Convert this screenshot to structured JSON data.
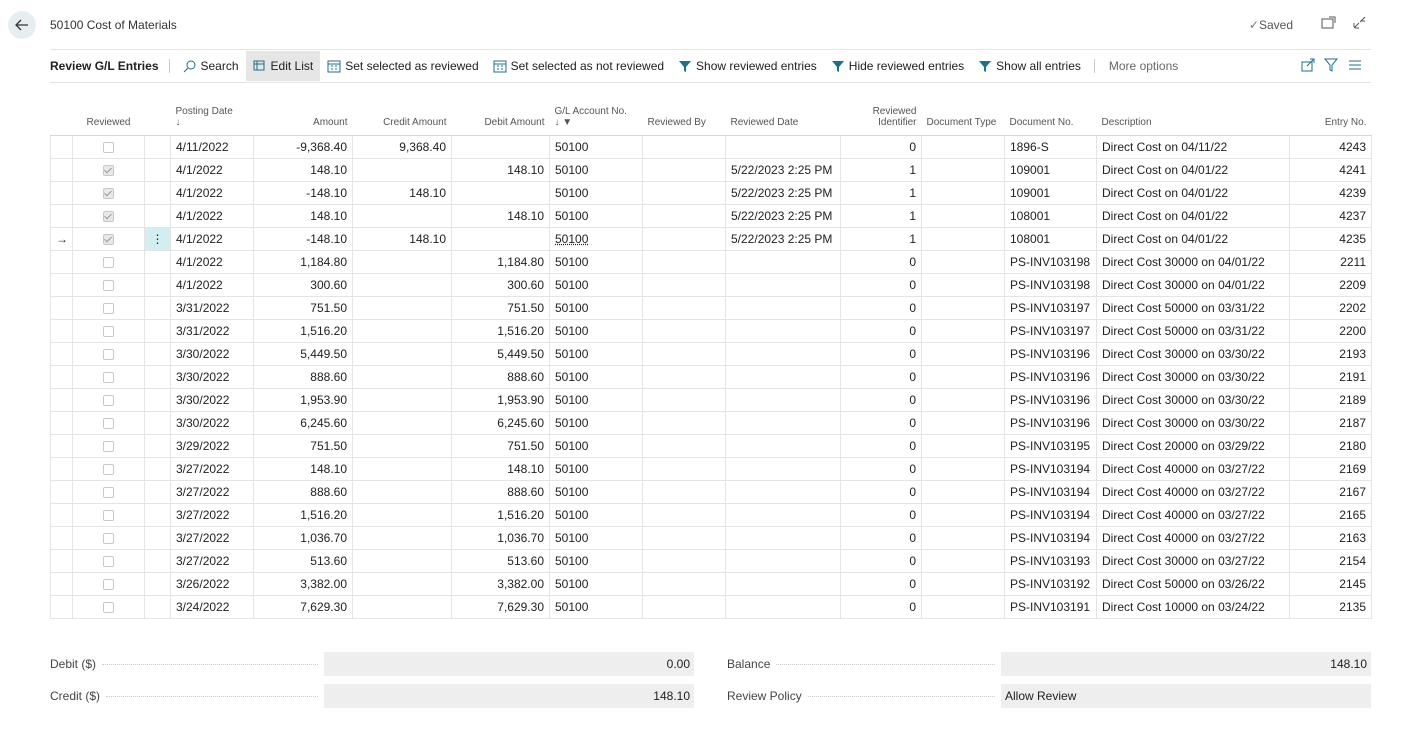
{
  "header": {
    "title": "50100 Cost of Materials",
    "status": "Saved"
  },
  "toolbar": {
    "title": "Review G/L Entries",
    "actions": [
      "Search",
      "Edit List",
      "Set selected as reviewed",
      "Set selected as not reviewed",
      "Show reviewed entries",
      "Hide reviewed entries",
      "Show all entries"
    ],
    "more": "More options"
  },
  "table": {
    "columns": [
      "Reviewed",
      "Posting Date",
      "Amount",
      "Credit Amount",
      "Debit Amount",
      "G/L Account No.",
      "Reviewed By",
      "Reviewed Date",
      "Reviewed Identifier",
      "Document Type",
      "Document No.",
      "Description",
      "Entry No."
    ],
    "selected_row": 4,
    "rows": [
      {
        "reviewed": false,
        "cells": [
          "4/11/2022",
          "-9,368.40",
          "9,368.40",
          null,
          "50100",
          null,
          null,
          "0",
          null,
          "1896-S",
          "Direct Cost  on 04/11/22",
          "4243"
        ]
      },
      {
        "reviewed": true,
        "cells": [
          "4/1/2022",
          "148.10",
          null,
          "148.10",
          "50100",
          null,
          "5/22/2023 2:25 PM",
          "1",
          null,
          "109001",
          "Direct Cost  on 04/01/22",
          "4241"
        ]
      },
      {
        "reviewed": true,
        "cells": [
          "4/1/2022",
          "-148.10",
          "148.10",
          null,
          "50100",
          null,
          "5/22/2023 2:25 PM",
          "1",
          null,
          "109001",
          "Direct Cost  on 04/01/22",
          "4239"
        ]
      },
      {
        "reviewed": true,
        "cells": [
          "4/1/2022",
          "148.10",
          null,
          "148.10",
          "50100",
          null,
          "5/22/2023 2:25 PM",
          "1",
          null,
          "108001",
          "Direct Cost  on 04/01/22",
          "4237"
        ]
      },
      {
        "reviewed": true,
        "cells": [
          "4/1/2022",
          "-148.10",
          "148.10",
          null,
          "50100",
          null,
          "5/22/2023 2:25 PM",
          "1",
          null,
          "108001",
          "Direct Cost  on 04/01/22",
          "4235"
        ]
      },
      {
        "reviewed": false,
        "cells": [
          "4/1/2022",
          "1,184.80",
          null,
          "1,184.80",
          "50100",
          null,
          null,
          "0",
          null,
          "PS-INV103198",
          "Direct Cost 30000 on 04/01/22",
          "2211"
        ]
      },
      {
        "reviewed": false,
        "cells": [
          "4/1/2022",
          "300.60",
          null,
          "300.60",
          "50100",
          null,
          null,
          "0",
          null,
          "PS-INV103198",
          "Direct Cost 30000 on 04/01/22",
          "2209"
        ]
      },
      {
        "reviewed": false,
        "cells": [
          "3/31/2022",
          "751.50",
          null,
          "751.50",
          "50100",
          null,
          null,
          "0",
          null,
          "PS-INV103197",
          "Direct Cost 50000 on 03/31/22",
          "2202"
        ]
      },
      {
        "reviewed": false,
        "cells": [
          "3/31/2022",
          "1,516.20",
          null,
          "1,516.20",
          "50100",
          null,
          null,
          "0",
          null,
          "PS-INV103197",
          "Direct Cost 50000 on 03/31/22",
          "2200"
        ]
      },
      {
        "reviewed": false,
        "cells": [
          "3/30/2022",
          "5,449.50",
          null,
          "5,449.50",
          "50100",
          null,
          null,
          "0",
          null,
          "PS-INV103196",
          "Direct Cost 30000 on 03/30/22",
          "2193"
        ]
      },
      {
        "reviewed": false,
        "cells": [
          "3/30/2022",
          "888.60",
          null,
          "888.60",
          "50100",
          null,
          null,
          "0",
          null,
          "PS-INV103196",
          "Direct Cost 30000 on 03/30/22",
          "2191"
        ]
      },
      {
        "reviewed": false,
        "cells": [
          "3/30/2022",
          "1,953.90",
          null,
          "1,953.90",
          "50100",
          null,
          null,
          "0",
          null,
          "PS-INV103196",
          "Direct Cost 30000 on 03/30/22",
          "2189"
        ]
      },
      {
        "reviewed": false,
        "cells": [
          "3/30/2022",
          "6,245.60",
          null,
          "6,245.60",
          "50100",
          null,
          null,
          "0",
          null,
          "PS-INV103196",
          "Direct Cost 30000 on 03/30/22",
          "2187"
        ]
      },
      {
        "reviewed": false,
        "cells": [
          "3/29/2022",
          "751.50",
          null,
          "751.50",
          "50100",
          null,
          null,
          "0",
          null,
          "PS-INV103195",
          "Direct Cost 20000 on 03/29/22",
          "2180"
        ]
      },
      {
        "reviewed": false,
        "cells": [
          "3/27/2022",
          "148.10",
          null,
          "148.10",
          "50100",
          null,
          null,
          "0",
          null,
          "PS-INV103194",
          "Direct Cost 40000 on 03/27/22",
          "2169"
        ]
      },
      {
        "reviewed": false,
        "cells": [
          "3/27/2022",
          "888.60",
          null,
          "888.60",
          "50100",
          null,
          null,
          "0",
          null,
          "PS-INV103194",
          "Direct Cost 40000 on 03/27/22",
          "2167"
        ]
      },
      {
        "reviewed": false,
        "cells": [
          "3/27/2022",
          "1,516.20",
          null,
          "1,516.20",
          "50100",
          null,
          null,
          "0",
          null,
          "PS-INV103194",
          "Direct Cost 40000 on 03/27/22",
          "2165"
        ]
      },
      {
        "reviewed": false,
        "cells": [
          "3/27/2022",
          "1,036.70",
          null,
          "1,036.70",
          "50100",
          null,
          null,
          "0",
          null,
          "PS-INV103194",
          "Direct Cost 40000 on 03/27/22",
          "2163"
        ]
      },
      {
        "reviewed": false,
        "cells": [
          "3/27/2022",
          "513.60",
          null,
          "513.60",
          "50100",
          null,
          null,
          "0",
          null,
          "PS-INV103193",
          "Direct Cost 30000 on 03/27/22",
          "2154"
        ]
      },
      {
        "reviewed": false,
        "cells": [
          "3/26/2022",
          "3,382.00",
          null,
          "3,382.00",
          "50100",
          null,
          null,
          "0",
          null,
          "PS-INV103192",
          "Direct Cost 50000 on 03/26/22",
          "2145"
        ]
      },
      {
        "reviewed": false,
        "cells": [
          "3/24/2022",
          "7,629.30",
          null,
          "7,629.30",
          "50100",
          null,
          null,
          "0",
          null,
          "PS-INV103191",
          "Direct Cost 10000 on 03/24/22",
          "2135"
        ]
      }
    ]
  },
  "totals": [
    {
      "label": "Debit ($)",
      "value": "0.00"
    },
    {
      "label": "Credit ($)",
      "value": "148.10"
    },
    {
      "label": "Balance",
      "value": "148.10"
    },
    {
      "label": "Review Policy",
      "value": "Allow Review"
    }
  ]
}
